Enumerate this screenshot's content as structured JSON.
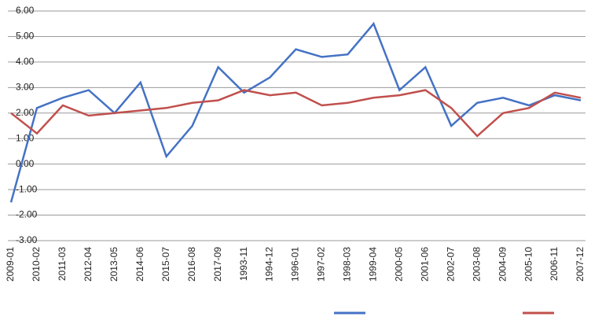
{
  "chart_data": {
    "type": "line",
    "categories": [
      "2009-01",
      "2010-02",
      "2011-03",
      "2012-04",
      "2013-05",
      "2014-06",
      "2015-07",
      "2016-08",
      "2017-09",
      "1993-11",
      "1994-12",
      "1996-01",
      "1997-02",
      "1998-03",
      "1999-04",
      "2000-05",
      "2001-06",
      "2002-07",
      "2003-08",
      "2004-09",
      "2005-10",
      "2006-11",
      "2007-12"
    ],
    "series": [
      {
        "color": "#4472c4",
        "values": [
          -1.5,
          2.2,
          2.6,
          2.9,
          2.0,
          3.2,
          0.3,
          1.5,
          3.8,
          2.8,
          3.4,
          4.5,
          4.2,
          4.3,
          5.5,
          2.9,
          3.8,
          1.5,
          2.4,
          2.6,
          2.3,
          2.7,
          2.5
        ]
      },
      {
        "color": "#c0504d",
        "values": [
          2.0,
          1.2,
          2.3,
          1.9,
          2.0,
          2.1,
          2.2,
          2.4,
          2.5,
          2.9,
          2.7,
          2.8,
          2.3,
          2.4,
          2.6,
          2.7,
          2.9,
          2.2,
          1.1,
          2.0,
          2.2,
          2.8,
          2.6
        ]
      }
    ],
    "ylim": [
      -3,
      6
    ],
    "yticks": [
      {
        "value": -3,
        "label": "-3.00"
      },
      {
        "value": -2,
        "label": "-2.00"
      },
      {
        "value": -1,
        "label": "-1.00"
      },
      {
        "value": 0,
        "label": "0.00"
      },
      {
        "value": 1,
        "label": "1.00"
      },
      {
        "value": 2,
        "label": "2.00"
      },
      {
        "value": 3,
        "label": "3.00"
      },
      {
        "value": 4,
        "label": "4.00"
      },
      {
        "value": 5,
        "label": "5.00"
      },
      {
        "value": 6,
        "label": "6.00"
      }
    ],
    "grid": true
  }
}
